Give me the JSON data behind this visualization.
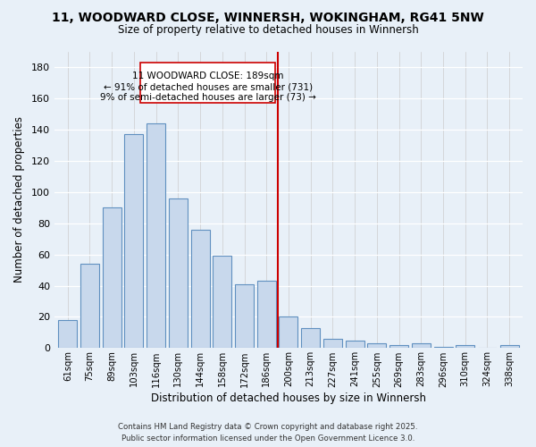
{
  "title_line1": "11, WOODWARD CLOSE, WINNERSH, WOKINGHAM, RG41 5NW",
  "title_line2": "Size of property relative to detached houses in Winnersh",
  "xlabel": "Distribution of detached houses by size in Winnersh",
  "ylabel": "Number of detached properties",
  "footer": "Contains HM Land Registry data © Crown copyright and database right 2025.\nPublic sector information licensed under the Open Government Licence 3.0.",
  "annotation_line1": "11 WOODWARD CLOSE: 189sqm",
  "annotation_line2": "← 91% of detached houses are smaller (731)",
  "annotation_line3": "9% of semi-detached houses are larger (73) →",
  "bar_color": "#c8d8ec",
  "bar_edge_color": "#6090c0",
  "vline_color": "#cc0000",
  "annotation_box_color": "#cc0000",
  "background_color": "#e8f0f8",
  "categories": [
    "61sqm",
    "75sqm",
    "89sqm",
    "103sqm",
    "116sqm",
    "130sqm",
    "144sqm",
    "158sqm",
    "172sqm",
    "186sqm",
    "200sqm",
    "213sqm",
    "227sqm",
    "241sqm",
    "255sqm",
    "269sqm",
    "283sqm",
    "296sqm",
    "310sqm",
    "324sqm",
    "338sqm"
  ],
  "values": [
    18,
    54,
    90,
    137,
    144,
    96,
    76,
    59,
    41,
    43,
    20,
    13,
    6,
    5,
    3,
    2,
    3,
    1,
    2,
    0,
    2
  ],
  "vline_x": 9.5,
  "ylim": [
    0,
    190
  ],
  "yticks": [
    0,
    20,
    40,
    60,
    80,
    100,
    120,
    140,
    160,
    180
  ]
}
